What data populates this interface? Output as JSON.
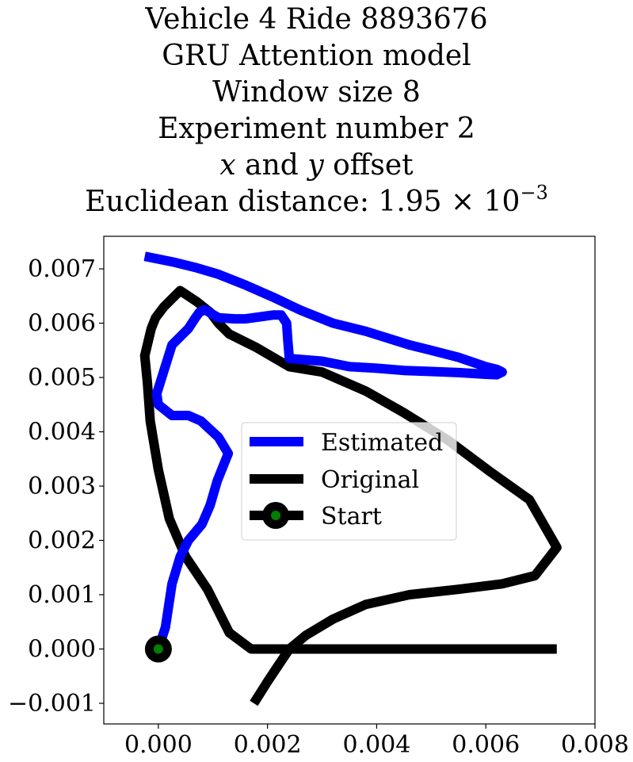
{
  "chart_data": {
    "type": "line",
    "title_lines": [
      "Vehicle 4 Ride 8893676",
      "GRU Attention model",
      "Window size 8",
      "Experiment number 2"
    ],
    "offset_line": {
      "x": "x",
      "and": "and",
      "y": "y",
      "rest": "offset"
    },
    "distance_line": {
      "prefix": "Euclidean distance: 1.95",
      "times": "×",
      "base": "10",
      "exponent": "−3"
    },
    "xlim": [
      -0.001,
      0.008
    ],
    "ylim": [
      -0.00138,
      0.0076
    ],
    "xticks": [
      0.0,
      0.002,
      0.004,
      0.006,
      0.008
    ],
    "xtick_labels": [
      "0.000",
      "0.002",
      "0.004",
      "0.006",
      "0.008"
    ],
    "yticks": [
      -0.001,
      0.0,
      0.001,
      0.002,
      0.003,
      0.004,
      0.005,
      0.006,
      0.007
    ],
    "ytick_labels": [
      "−0.001",
      "0.000",
      "0.001",
      "0.002",
      "0.003",
      "0.004",
      "0.005",
      "0.006",
      "0.007"
    ],
    "grid": false,
    "legend_position": "center-right",
    "series": [
      {
        "name": "Estimated",
        "color": "#0000ff",
        "x": [
          0.0,
          0.00013,
          0.00025,
          0.0004,
          0.00055,
          0.0008,
          0.00095,
          0.00108,
          0.00128,
          0.0011,
          0.00078,
          0.00055,
          0.00025,
          0.0,
          -3e-05,
          0.00025,
          0.00055,
          0.00068,
          0.00075,
          0.00085,
          0.0011,
          0.0014,
          0.0016,
          0.0021,
          0.00225,
          0.00235,
          0.00237,
          0.0024,
          0.003,
          0.0035,
          0.004,
          0.0045,
          0.005,
          0.0055,
          0.006,
          0.0062,
          0.0063,
          0.0062,
          0.006,
          0.0055,
          0.005,
          0.0046,
          0.0038,
          0.0032,
          0.0026,
          0.0021,
          0.0016,
          0.0011,
          0.0007,
          0.0003,
          -0.00025
        ],
        "y": [
          0.0,
          0.0004,
          0.0012,
          0.0017,
          0.002,
          0.0023,
          0.00265,
          0.0031,
          0.0036,
          0.0039,
          0.0042,
          0.0043,
          0.0043,
          0.0045,
          0.0047,
          0.0056,
          0.0059,
          0.0061,
          0.0062,
          0.00625,
          0.0061,
          0.00608,
          0.00608,
          0.00615,
          0.00615,
          0.006,
          0.0057,
          0.00535,
          0.0053,
          0.0052,
          0.00517,
          0.00513,
          0.00511,
          0.00509,
          0.00506,
          0.00505,
          0.0051,
          0.00515,
          0.0052,
          0.00537,
          0.0055,
          0.0056,
          0.00585,
          0.006,
          0.00624,
          0.00648,
          0.0067,
          0.0069,
          0.00702,
          0.00712,
          0.00723
        ]
      },
      {
        "name": "Original",
        "color": "#000000",
        "x": [
          0.00175,
          0.002,
          0.0022,
          0.0024,
          0.0027,
          0.0032,
          0.0038,
          0.0046,
          0.0055,
          0.0063,
          0.0069,
          0.0073,
          0.0068,
          0.0061,
          0.0053,
          0.0045,
          0.0038,
          0.003,
          0.0024,
          0.0018,
          0.0013,
          0.0011,
          0.00095,
          0.0007,
          0.0004,
          0.0001,
          -5e-05,
          -0.00013,
          -0.00025,
          -0.0002,
          -0.00015,
          -0.0001,
          0.0,
          0.0002,
          0.0005,
          0.0009,
          0.0013,
          0.0017,
          0.0021,
          0.0025,
          0.0028,
          0.00292,
          0.00285,
          0.0028,
          0.00282,
          0.0029,
          0.003,
          0.0035,
          0.0039,
          0.0046,
          0.0053,
          0.0061,
          0.0068,
          0.0073
        ],
        "y": [
          -0.001,
          -0.0006,
          -0.0003,
          0.0,
          0.00025,
          0.00055,
          0.00082,
          0.001,
          0.0011,
          0.0012,
          0.00135,
          0.00187,
          0.00275,
          0.00325,
          0.00385,
          0.00435,
          0.00475,
          0.0051,
          0.0052,
          0.00555,
          0.0058,
          0.006,
          0.0062,
          0.0064,
          0.0066,
          0.0063,
          0.0061,
          0.0059,
          0.0054,
          0.0049,
          0.0042,
          0.0039,
          0.0033,
          0.0024,
          0.0017,
          0.0011,
          0.0003,
          0.0,
          0.0,
          0.0,
          0.0,
          0.0,
          0.0,
          0.0,
          0.0,
          0.0,
          0.0,
          0.0,
          0.0,
          0.0,
          0.0,
          0.0,
          0.0,
          0.0
        ]
      },
      {
        "name": "Start",
        "color": "#000000",
        "marker_color": "#008000",
        "x": [
          0.0
        ],
        "y": [
          0.0
        ]
      }
    ]
  }
}
